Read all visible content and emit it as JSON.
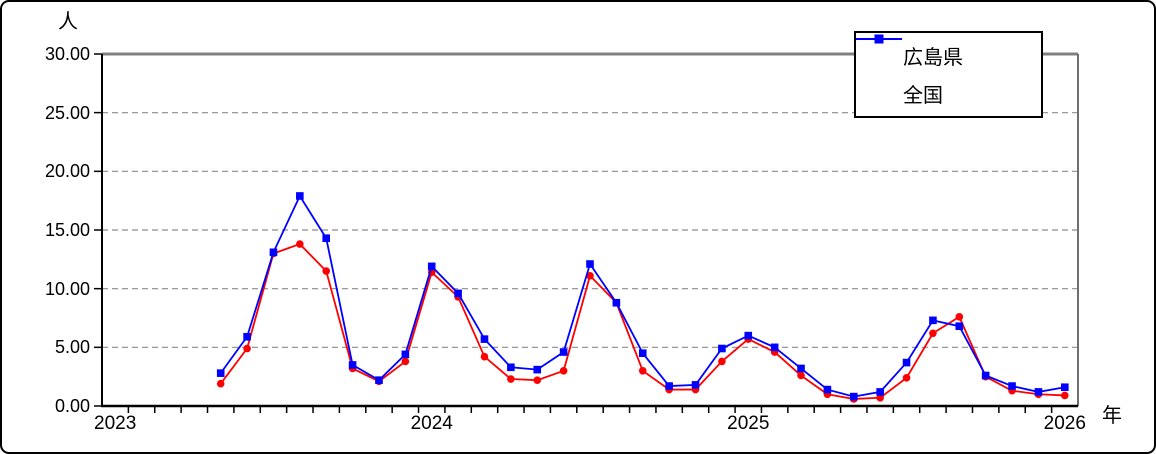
{
  "figure": {
    "y_unit_label": "人",
    "x_unit_label": "年"
  },
  "y_axis": {
    "min": 0,
    "max": 30,
    "ticks": [
      {
        "value": 0,
        "label": "0.00"
      },
      {
        "value": 5,
        "label": "5.00"
      },
      {
        "value": 10,
        "label": "10.00"
      },
      {
        "value": 15,
        "label": "15.00"
      },
      {
        "value": 20,
        "label": "20.00"
      },
      {
        "value": 25,
        "label": "25.00"
      },
      {
        "value": 30,
        "label": "30.00"
      }
    ]
  },
  "x_axis": {
    "total_slots": 37,
    "year_labels": [
      {
        "label": "2023",
        "slot": 0
      },
      {
        "label": "2024",
        "slot": 12
      },
      {
        "label": "2025",
        "slot": 24
      },
      {
        "label": "2026",
        "slot": 36
      }
    ]
  },
  "legend": {
    "items": [
      {
        "label": "広島県",
        "color": "#ff0000",
        "marker": "circle"
      },
      {
        "label": "全国",
        "color": "#0000ff",
        "marker": "square"
      }
    ]
  },
  "colors": {
    "hiroshima": "#ff0000",
    "national": "#0000ff",
    "gridline": "#8c8c8c",
    "plot_border": "#808080",
    "axis": "#000000"
  },
  "chart_data": {
    "type": "line",
    "title": "",
    "xlabel": "年",
    "ylabel": "人",
    "ylim": [
      0,
      30
    ],
    "grid": true,
    "legend_position": "top-right",
    "x": [
      "2023-05",
      "2023-06",
      "2023-07",
      "2023-08",
      "2023-09",
      "2023-10",
      "2023-11",
      "2023-12",
      "2024-01",
      "2024-02",
      "2024-03",
      "2024-04",
      "2024-05",
      "2024-06",
      "2024-07",
      "2024-08",
      "2024-09",
      "2024-10",
      "2024-11",
      "2024-12",
      "2025-01",
      "2025-02",
      "2025-03",
      "2025-04",
      "2025-05",
      "2025-06",
      "2025-07",
      "2025-08",
      "2025-09",
      "2025-10",
      "2025-11",
      "2025-12",
      "2026-01"
    ],
    "start_slot": 4,
    "series": [
      {
        "name": "広島県",
        "color": "#ff0000",
        "marker": "circle",
        "values": [
          1.9,
          4.9,
          13.0,
          13.8,
          11.5,
          3.2,
          2.1,
          3.8,
          11.4,
          9.3,
          4.2,
          2.3,
          2.2,
          3.0,
          11.1,
          8.8,
          3.0,
          1.4,
          1.4,
          3.8,
          5.7,
          4.6,
          2.6,
          1.0,
          0.6,
          0.7,
          2.4,
          6.2,
          7.6,
          2.5,
          1.3,
          1.0,
          0.9
        ]
      },
      {
        "name": "全国",
        "color": "#0000ff",
        "marker": "square",
        "values": [
          2.8,
          5.9,
          13.1,
          17.9,
          14.3,
          3.5,
          2.2,
          4.4,
          11.9,
          9.6,
          5.7,
          3.3,
          3.1,
          4.6,
          12.1,
          8.8,
          4.5,
          1.7,
          1.8,
          4.9,
          6.0,
          5.0,
          3.2,
          1.4,
          0.8,
          1.2,
          3.7,
          7.3,
          6.8,
          2.6,
          1.7,
          1.2,
          1.6
        ]
      }
    ]
  }
}
